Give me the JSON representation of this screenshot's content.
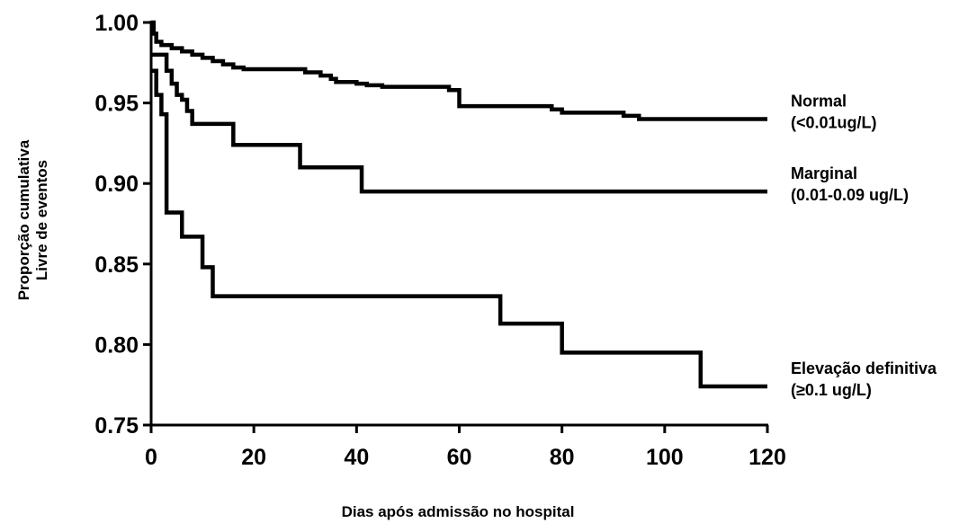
{
  "chart_data": {
    "type": "line",
    "title": "",
    "xlabel": "Dias após admissão no hospital",
    "ylabel_lines": [
      "Proporção cumulativa",
      "Livre de eventos"
    ],
    "xlim": [
      0,
      120
    ],
    "ylim": [
      0.75,
      1.0
    ],
    "xticks": [
      0,
      20,
      40,
      60,
      80,
      100,
      120
    ],
    "yticks": [
      1.0,
      0.95,
      0.9,
      0.85,
      0.8,
      0.75
    ],
    "xtick_labels": [
      "0",
      "20",
      "40",
      "60",
      "80",
      "100",
      "120"
    ],
    "ytick_labels": [
      "1.00",
      "0.95",
      "0.90",
      "0.85",
      "0.80",
      "0.75"
    ],
    "grid": false,
    "step": true,
    "series": [
      {
        "name": "Normal",
        "label_lines": [
          "Normal",
          "(<0.01ug/L)"
        ],
        "points": [
          [
            0,
            1.0
          ],
          [
            0.5,
            0.993
          ],
          [
            1,
            0.988
          ],
          [
            2,
            0.986
          ],
          [
            4,
            0.984
          ],
          [
            6,
            0.982
          ],
          [
            8,
            0.98
          ],
          [
            10,
            0.978
          ],
          [
            12,
            0.976
          ],
          [
            14,
            0.974
          ],
          [
            16,
            0.972
          ],
          [
            18,
            0.971
          ],
          [
            30,
            0.969
          ],
          [
            33,
            0.967
          ],
          [
            35,
            0.965
          ],
          [
            36,
            0.963
          ],
          [
            40,
            0.962
          ],
          [
            42,
            0.961
          ],
          [
            45,
            0.96
          ],
          [
            58,
            0.958
          ],
          [
            60,
            0.948
          ],
          [
            78,
            0.946
          ],
          [
            80,
            0.944
          ],
          [
            92,
            0.942
          ],
          [
            95,
            0.94
          ],
          [
            120,
            0.94
          ]
        ]
      },
      {
        "name": "Marginal",
        "label_lines": [
          "Marginal",
          "(0.01-0.09 ug/L)"
        ],
        "points": [
          [
            0,
            0.98
          ],
          [
            3,
            0.97
          ],
          [
            4,
            0.962
          ],
          [
            5,
            0.955
          ],
          [
            6,
            0.952
          ],
          [
            7,
            0.945
          ],
          [
            8,
            0.937
          ],
          [
            16,
            0.924
          ],
          [
            29,
            0.91
          ],
          [
            41,
            0.895
          ],
          [
            120,
            0.895
          ]
        ]
      },
      {
        "name": "Elevação definitiva",
        "label_lines": [
          "Elevação definitiva",
          "(≥0.1 ug/L)"
        ],
        "points": [
          [
            0,
            0.97
          ],
          [
            1,
            0.955
          ],
          [
            2,
            0.943
          ],
          [
            3,
            0.882
          ],
          [
            6,
            0.867
          ],
          [
            10,
            0.848
          ],
          [
            12,
            0.83
          ],
          [
            68,
            0.813
          ],
          [
            80,
            0.795
          ],
          [
            107,
            0.774
          ],
          [
            120,
            0.774
          ]
        ]
      }
    ]
  }
}
